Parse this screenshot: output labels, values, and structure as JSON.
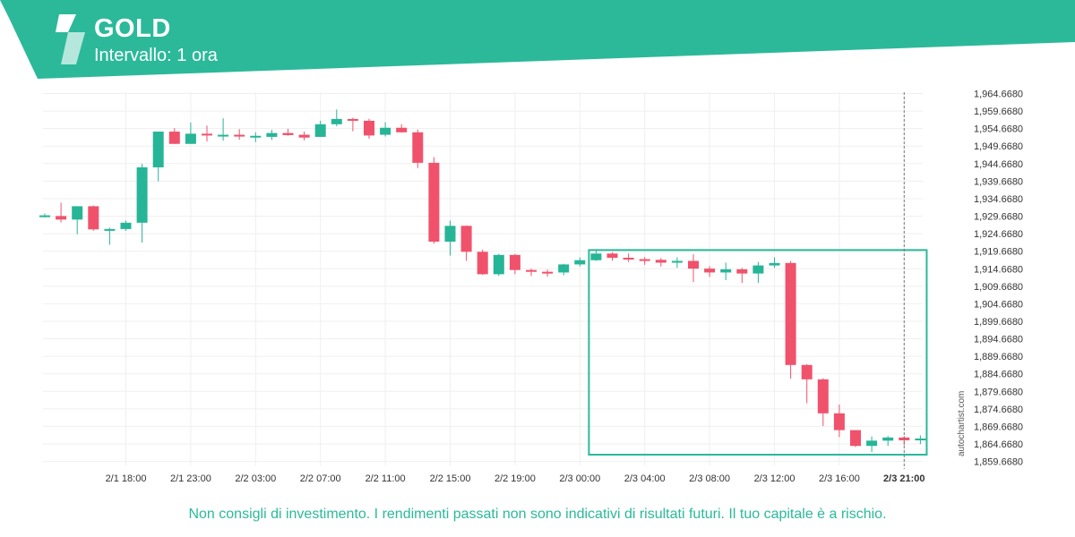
{
  "header": {
    "title": "GOLD",
    "subtitle": "Intervallo: 1 ora",
    "brand_color": "#2bb99a",
    "logo_icon": "autochartist-logo-icon"
  },
  "footer": {
    "disclaimer": "Non consigli di investimento. I rendimenti passati non sono indicativi di risultati futuri. Il tuo capitale è a rischio.",
    "watermark": "autochartist.com"
  },
  "chart_data": {
    "type": "candlestick",
    "symbol": "GOLD",
    "interval": "1 ora",
    "ylim": [
      1857.5,
      1967.0
    ],
    "yticks": [
      "1,964.6680",
      "1,959.6680",
      "1,954.6680",
      "1,949.6680",
      "1,944.6680",
      "1,939.6680",
      "1,934.6680",
      "1,929.6680",
      "1,924.6680",
      "1,919.6680",
      "1,914.6680",
      "1,909.6680",
      "1,904.6680",
      "1,899.6680",
      "1,894.6680",
      "1,889.6680",
      "1,884.6680",
      "1,879.6680",
      "1,874.6680",
      "1,869.6680",
      "1,864.6680",
      "1,859.6680"
    ],
    "ytick_values": [
      1964.668,
      1959.668,
      1954.668,
      1949.668,
      1944.668,
      1939.668,
      1934.668,
      1929.668,
      1924.668,
      1919.668,
      1914.668,
      1909.668,
      1904.668,
      1899.668,
      1894.668,
      1889.668,
      1884.668,
      1879.668,
      1874.668,
      1869.668,
      1864.668,
      1859.668
    ],
    "xticks": [
      {
        "label": "2/1 18:00",
        "index": 5
      },
      {
        "label": "2/1 23:00",
        "index": 9
      },
      {
        "label": "2/2 03:00",
        "index": 13
      },
      {
        "label": "2/2 07:00",
        "index": 17
      },
      {
        "label": "2/2 11:00",
        "index": 21
      },
      {
        "label": "2/2 15:00",
        "index": 25
      },
      {
        "label": "2/2 19:00",
        "index": 29
      },
      {
        "label": "2/3 00:00",
        "index": 33
      },
      {
        "label": "2/3 04:00",
        "index": 37
      },
      {
        "label": "2/3 08:00",
        "index": 41
      },
      {
        "label": "2/3 12:00",
        "index": 45
      },
      {
        "label": "2/3 16:00",
        "index": 49
      },
      {
        "label": "2/3 21:00",
        "index": 53,
        "bold": true
      }
    ],
    "current_index": 53,
    "candles": [
      {
        "o": 1929.9,
        "h": 1930.4,
        "l": 1929.3,
        "c": 1929.9
      },
      {
        "o": 1929.7,
        "h": 1933.5,
        "l": 1927.9,
        "c": 1928.7
      },
      {
        "o": 1928.7,
        "h": 1932.5,
        "l": 1924.5,
        "c": 1932.5
      },
      {
        "o": 1932.5,
        "h": 1932.7,
        "l": 1925.5,
        "c": 1925.9
      },
      {
        "o": 1925.9,
        "h": 1926.4,
        "l": 1921.5,
        "c": 1926.0
      },
      {
        "o": 1926.0,
        "h": 1928.4,
        "l": 1925.5,
        "c": 1927.8
      },
      {
        "o": 1927.8,
        "h": 1944.6,
        "l": 1922.1,
        "c": 1943.6
      },
      {
        "o": 1943.6,
        "h": 1953.8,
        "l": 1939.6,
        "c": 1953.8
      },
      {
        "o": 1953.8,
        "h": 1954.8,
        "l": 1950.3,
        "c": 1950.3
      },
      {
        "o": 1950.3,
        "h": 1956.4,
        "l": 1950.3,
        "c": 1953.2
      },
      {
        "o": 1953.2,
        "h": 1955.5,
        "l": 1951.0,
        "c": 1952.8
      },
      {
        "o": 1952.8,
        "h": 1957.6,
        "l": 1951.2,
        "c": 1952.9
      },
      {
        "o": 1952.9,
        "h": 1954.5,
        "l": 1951.5,
        "c": 1952.4
      },
      {
        "o": 1952.4,
        "h": 1953.6,
        "l": 1950.8,
        "c": 1952.6
      },
      {
        "o": 1952.3,
        "h": 1954.3,
        "l": 1951.4,
        "c": 1953.4
      },
      {
        "o": 1953.4,
        "h": 1954.6,
        "l": 1952.6,
        "c": 1952.8
      },
      {
        "o": 1952.9,
        "h": 1953.8,
        "l": 1951.3,
        "c": 1952.1
      },
      {
        "o": 1952.3,
        "h": 1956.9,
        "l": 1952.3,
        "c": 1955.9
      },
      {
        "o": 1955.9,
        "h": 1960.1,
        "l": 1955.3,
        "c": 1957.4
      },
      {
        "o": 1957.4,
        "h": 1957.8,
        "l": 1953.9,
        "c": 1956.9
      },
      {
        "o": 1956.9,
        "h": 1957.5,
        "l": 1951.8,
        "c": 1952.7
      },
      {
        "o": 1952.9,
        "h": 1956.5,
        "l": 1952.4,
        "c": 1954.9
      },
      {
        "o": 1954.9,
        "h": 1955.9,
        "l": 1953.5,
        "c": 1953.6
      },
      {
        "o": 1953.6,
        "h": 1954.4,
        "l": 1943.4,
        "c": 1944.9
      },
      {
        "o": 1944.9,
        "h": 1946.5,
        "l": 1921.8,
        "c": 1922.4
      },
      {
        "o": 1922.4,
        "h": 1928.4,
        "l": 1918.4,
        "c": 1926.9
      },
      {
        "o": 1926.9,
        "h": 1927.0,
        "l": 1916.9,
        "c": 1919.5
      },
      {
        "o": 1919.5,
        "h": 1920.1,
        "l": 1912.9,
        "c": 1913.1
      },
      {
        "o": 1913.1,
        "h": 1918.9,
        "l": 1912.6,
        "c": 1918.6
      },
      {
        "o": 1918.6,
        "h": 1918.9,
        "l": 1913.1,
        "c": 1914.3
      },
      {
        "o": 1914.3,
        "h": 1914.7,
        "l": 1912.6,
        "c": 1913.8
      },
      {
        "o": 1913.8,
        "h": 1914.4,
        "l": 1912.4,
        "c": 1913.6
      },
      {
        "o": 1913.6,
        "h": 1916.1,
        "l": 1912.8,
        "c": 1915.9
      },
      {
        "o": 1915.9,
        "h": 1917.9,
        "l": 1915.3,
        "c": 1917.1
      },
      {
        "o": 1917.1,
        "h": 1919.9,
        "l": 1916.9,
        "c": 1919.0
      },
      {
        "o": 1919.0,
        "h": 1919.4,
        "l": 1917.0,
        "c": 1917.8
      },
      {
        "o": 1917.8,
        "h": 1919.0,
        "l": 1916.6,
        "c": 1917.4
      },
      {
        "o": 1917.4,
        "h": 1918.0,
        "l": 1915.8,
        "c": 1917.2
      },
      {
        "o": 1917.2,
        "h": 1917.7,
        "l": 1915.3,
        "c": 1916.4
      },
      {
        "o": 1916.4,
        "h": 1917.9,
        "l": 1914.9,
        "c": 1916.9
      },
      {
        "o": 1916.9,
        "h": 1918.8,
        "l": 1910.9,
        "c": 1914.7
      },
      {
        "o": 1914.7,
        "h": 1915.4,
        "l": 1912.3,
        "c": 1913.6
      },
      {
        "o": 1913.6,
        "h": 1916.4,
        "l": 1911.4,
        "c": 1914.5
      },
      {
        "o": 1914.5,
        "h": 1914.9,
        "l": 1910.6,
        "c": 1913.3
      },
      {
        "o": 1913.3,
        "h": 1916.6,
        "l": 1910.6,
        "c": 1915.6
      },
      {
        "o": 1915.6,
        "h": 1917.9,
        "l": 1914.9,
        "c": 1916.3
      },
      {
        "o": 1916.3,
        "h": 1916.9,
        "l": 1883.3,
        "c": 1887.2
      },
      {
        "o": 1887.2,
        "h": 1887.4,
        "l": 1876.3,
        "c": 1883.1
      },
      {
        "o": 1883.1,
        "h": 1883.4,
        "l": 1869.8,
        "c": 1873.4
      },
      {
        "o": 1873.4,
        "h": 1875.9,
        "l": 1866.6,
        "c": 1868.6
      },
      {
        "o": 1868.6,
        "h": 1868.6,
        "l": 1863.8,
        "c": 1864.1
      },
      {
        "o": 1864.1,
        "h": 1866.8,
        "l": 1862.4,
        "c": 1865.6
      },
      {
        "o": 1865.6,
        "h": 1866.9,
        "l": 1864.1,
        "c": 1866.5
      },
      {
        "o": 1866.5,
        "h": 1866.9,
        "l": 1864.3,
        "c": 1865.7
      },
      {
        "o": 1865.7,
        "h": 1867.1,
        "l": 1864.6,
        "c": 1866.2
      }
    ],
    "pattern_box": {
      "start_index": 34,
      "end_index": 54.5,
      "y_top": 1920.0,
      "y_bottom": 1861.6
    },
    "colors": {
      "up": "#26b597",
      "down": "#f0526c",
      "box": "#2bb99a",
      "grid": "#efefef"
    },
    "grid": true
  }
}
